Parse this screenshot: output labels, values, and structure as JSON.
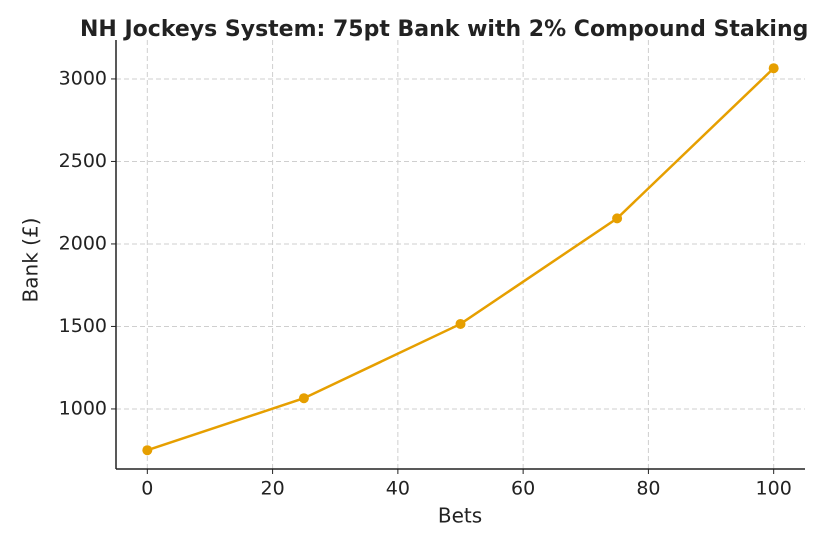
{
  "chart_data": {
    "type": "line",
    "title": "NH Jockeys System: 75pt Bank with 2% Compound Staking",
    "x_label": "Bets",
    "y_label": "Bank (£)",
    "x": [
      0,
      25,
      50,
      75,
      100
    ],
    "series": [
      {
        "name": "Bank",
        "color": "#e69f00",
        "values": [
          750,
          1065,
          1515,
          2155,
          3065
        ]
      }
    ],
    "xlim": [
      -5,
      105
    ],
    "ylim": [
      636,
      3236
    ],
    "xticks": [
      0,
      20,
      40,
      60,
      80,
      100
    ],
    "yticks": [
      1000,
      1500,
      2000,
      2500,
      3000
    ],
    "grid": true
  }
}
